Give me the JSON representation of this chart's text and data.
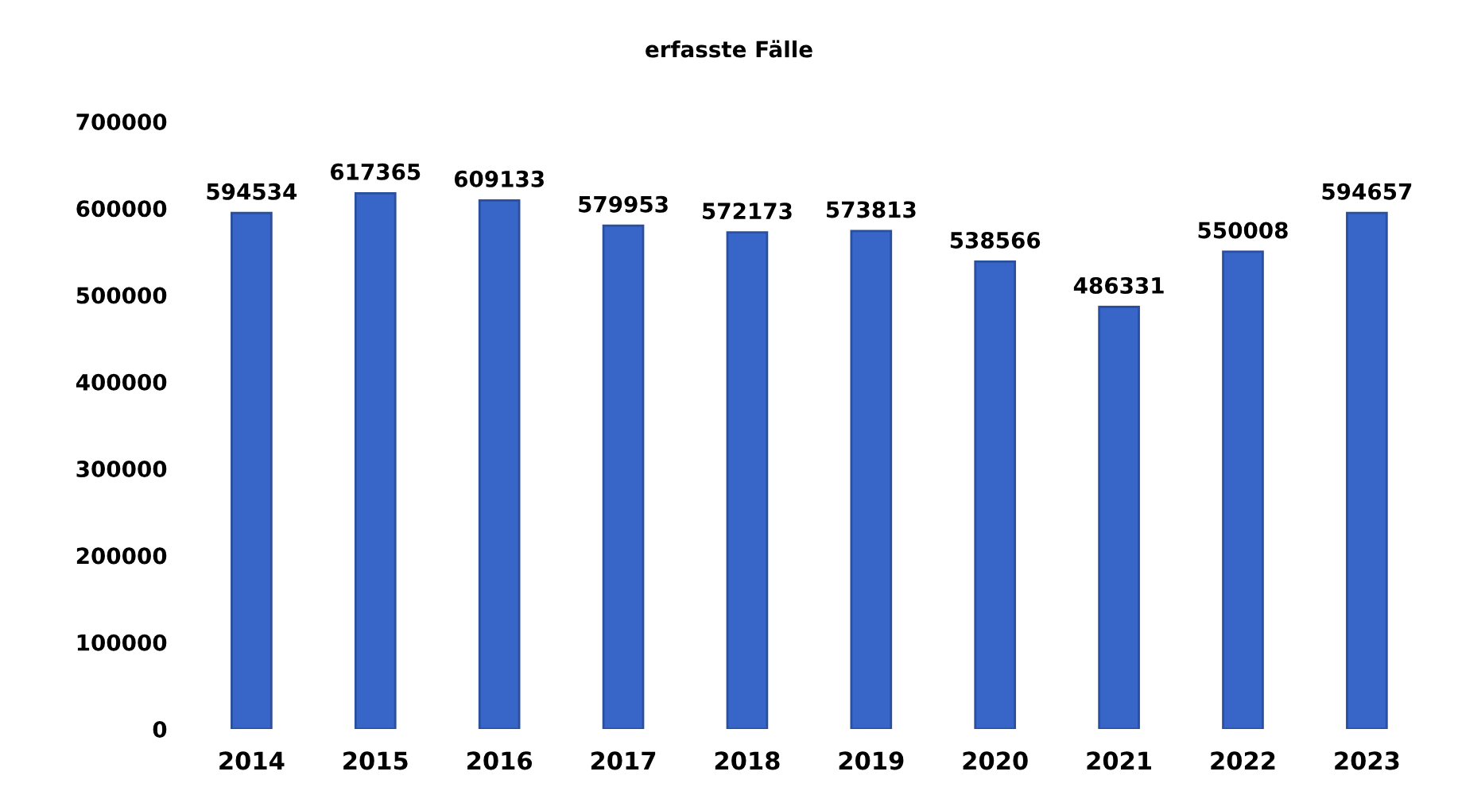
{
  "chart_data": {
    "type": "bar",
    "title": "erfasste Fälle",
    "categories": [
      "2014",
      "2015",
      "2016",
      "2017",
      "2018",
      "2019",
      "2020",
      "2021",
      "2022",
      "2023"
    ],
    "values": [
      594534,
      617365,
      609133,
      579953,
      572173,
      573813,
      538566,
      486331,
      550008,
      594657
    ],
    "color": "#3765c8",
    "ylim": [
      0,
      700000
    ],
    "yticks": [
      0,
      100000,
      200000,
      300000,
      400000,
      500000,
      600000,
      700000
    ],
    "grid": false,
    "data_labels": true
  }
}
